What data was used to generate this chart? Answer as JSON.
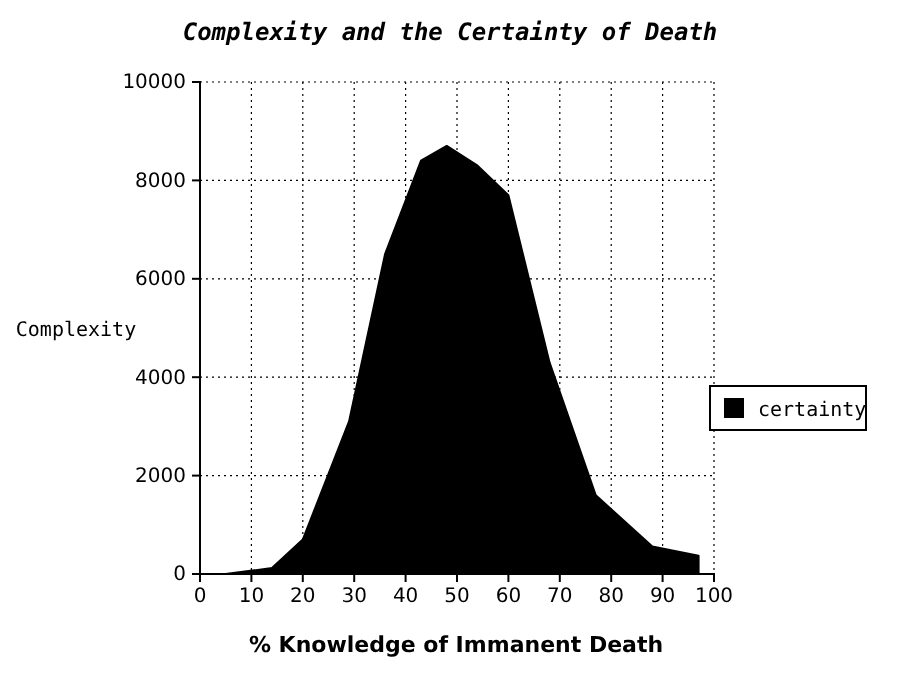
{
  "chart_data": {
    "type": "area",
    "title": "Complexity and the Certainty of Death",
    "xlabel": "% Knowledge of Immanent Death",
    "ylabel": "Complexity",
    "x": [
      5,
      14,
      20,
      29,
      36,
      43,
      48,
      54,
      60,
      68,
      77,
      88,
      97
    ],
    "series": [
      {
        "name": "certainty",
        "color": "#000000",
        "values": [
          0,
          120,
          700,
          3100,
          6500,
          8400,
          8700,
          8300,
          7700,
          4300,
          1600,
          560,
          370
        ]
      }
    ],
    "xlim": [
      0,
      100
    ],
    "xticks": [
      0,
      10,
      20,
      30,
      40,
      50,
      60,
      70,
      80,
      90,
      100
    ],
    "ylim": [
      0,
      10000
    ],
    "yticks": [
      0,
      2000,
      4000,
      6000,
      8000,
      10000
    ],
    "grid": true,
    "legend": "right"
  }
}
